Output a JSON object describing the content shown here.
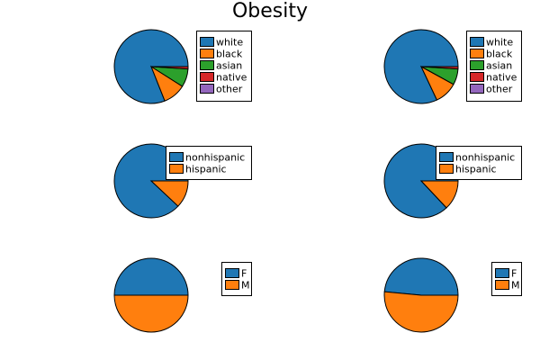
{
  "title": "Obesity",
  "colors": {
    "white": "#1f77b4",
    "black": "#ff7f0e",
    "asian": "#2ca02c",
    "native": "#d62728",
    "other": "#9467bd",
    "nonhispanic": "#1f77b4",
    "hispanic": "#ff7f0e",
    "F": "#1f77b4",
    "M": "#ff7f0e",
    "edge": "#000000"
  },
  "chart_data": [
    {
      "type": "pie",
      "title": "",
      "position": "row-1-left",
      "categories": [
        "white",
        "black",
        "asian",
        "native",
        "other"
      ],
      "values": [
        81,
        10,
        8,
        1,
        0
      ]
    },
    {
      "type": "pie",
      "title": "",
      "position": "row-1-right",
      "categories": [
        "white",
        "black",
        "asian",
        "native",
        "other"
      ],
      "values": [
        82,
        10,
        7,
        1,
        0
      ]
    },
    {
      "type": "pie",
      "title": "",
      "position": "row-2-left",
      "categories": [
        "nonhispanic",
        "hispanic"
      ],
      "values": [
        88,
        12
      ]
    },
    {
      "type": "pie",
      "title": "",
      "position": "row-2-right",
      "categories": [
        "nonhispanic",
        "hispanic"
      ],
      "values": [
        87,
        13
      ]
    },
    {
      "type": "pie",
      "title": "",
      "position": "row-3-left",
      "categories": [
        "F",
        "M"
      ],
      "values": [
        50,
        50
      ]
    },
    {
      "type": "pie",
      "title": "",
      "position": "row-3-right",
      "categories": [
        "F",
        "M"
      ],
      "values": [
        48.5,
        51.5
      ]
    }
  ]
}
